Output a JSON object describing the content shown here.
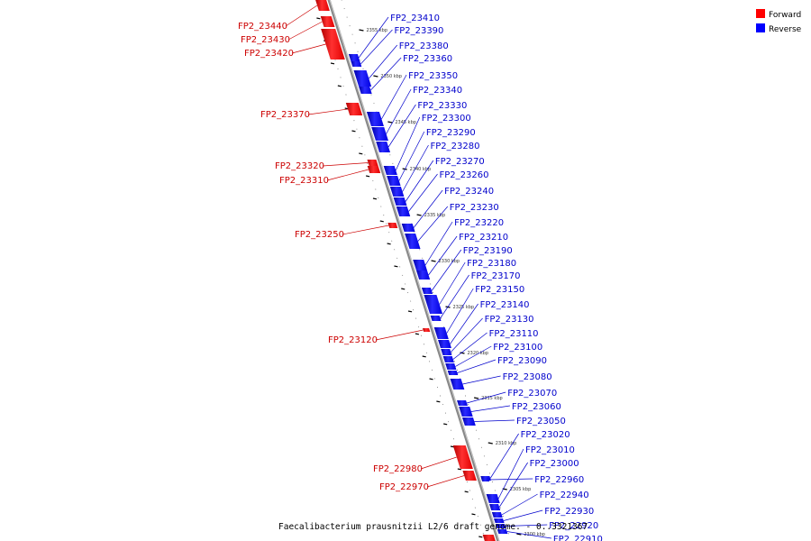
{
  "legend": {
    "forward_label": "Forward",
    "reverse_label": "Reverse",
    "forward_color": "#ff0000",
    "reverse_color": "#0000ff"
  },
  "caption": "Faecalibacterium prausnitzii L2/6 draft genome. - 0..3321367",
  "ticks": [
    {
      "label": "2355 kbp"
    },
    {
      "label": "2350 kbp"
    },
    {
      "label": "2345 kbp"
    },
    {
      "label": "2340 kbp"
    },
    {
      "label": "2335 kbp"
    },
    {
      "label": "2330 kbp"
    },
    {
      "label": "2325 kbp"
    },
    {
      "label": "2320 kbp"
    },
    {
      "label": "2315 kbp"
    },
    {
      "label": "2310 kbp"
    },
    {
      "label": "2305 kbp"
    },
    {
      "label": "2300 kbp"
    }
  ],
  "forward_genes": [
    {
      "name": "FP2_23440"
    },
    {
      "name": "FP2_23430"
    },
    {
      "name": "FP2_23420"
    },
    {
      "name": "FP2_23370"
    },
    {
      "name": "FP2_23320"
    },
    {
      "name": "FP2_23310"
    },
    {
      "name": "FP2_23250"
    },
    {
      "name": "FP2_23120"
    },
    {
      "name": "FP2_22980"
    },
    {
      "name": "FP2_22970"
    }
  ],
  "reverse_genes": [
    {
      "name": "FP2_23410"
    },
    {
      "name": "FP2_23390"
    },
    {
      "name": "FP2_23380"
    },
    {
      "name": "FP2_23360"
    },
    {
      "name": "FP2_23350"
    },
    {
      "name": "FP2_23340"
    },
    {
      "name": "FP2_23330"
    },
    {
      "name": "FP2_23300"
    },
    {
      "name": "FP2_23290"
    },
    {
      "name": "FP2_23280"
    },
    {
      "name": "FP2_23270"
    },
    {
      "name": "FP2_23260"
    },
    {
      "name": "FP2_23240"
    },
    {
      "name": "FP2_23230"
    },
    {
      "name": "FP2_23220"
    },
    {
      "name": "FP2_23210"
    },
    {
      "name": "FP2_23190"
    },
    {
      "name": "FP2_23180"
    },
    {
      "name": "FP2_23170"
    },
    {
      "name": "FP2_23150"
    },
    {
      "name": "FP2_23140"
    },
    {
      "name": "FP2_23130"
    },
    {
      "name": "FP2_23110"
    },
    {
      "name": "FP2_23100"
    },
    {
      "name": "FP2_23090"
    },
    {
      "name": "FP2_23080"
    },
    {
      "name": "FP2_23070"
    },
    {
      "name": "FP2_23060"
    },
    {
      "name": "FP2_23050"
    },
    {
      "name": "FP2_23020"
    },
    {
      "name": "FP2_23010"
    },
    {
      "name": "FP2_23000"
    },
    {
      "name": "FP2_22960"
    },
    {
      "name": "FP2_22940"
    },
    {
      "name": "FP2_22930"
    },
    {
      "name": "FP2_22920"
    },
    {
      "name": "FP2_22910"
    }
  ]
}
